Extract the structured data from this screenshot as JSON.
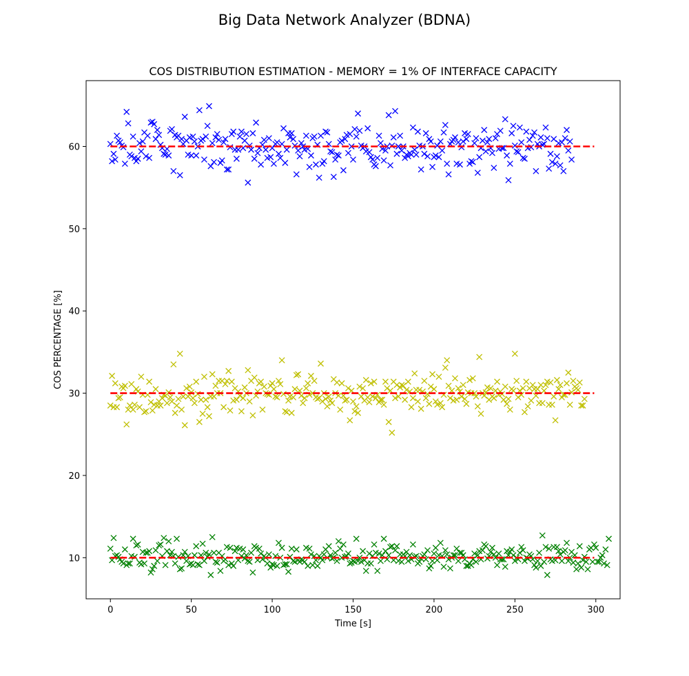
{
  "figure": {
    "suptitle": "Big Data Network Analyzer (BDNA)"
  },
  "chart_data": {
    "type": "scatter",
    "title": "COS DISTRIBUTION ESTIMATION - MEMORY = 1% OF INTERFACE CAPACITY",
    "xlabel": "Time [s]",
    "ylabel": "COS PERCENTAGE [%]",
    "xlim": [
      -15,
      315
    ],
    "ylim": [
      5,
      68
    ],
    "xticks": [
      0,
      50,
      100,
      150,
      200,
      250,
      300
    ],
    "yticks": [
      10,
      20,
      30,
      40,
      50,
      60
    ],
    "grid": false,
    "marker": "x",
    "x_step": 1,
    "x_count": 300,
    "series": [
      {
        "color": "#0000ff",
        "values": [
          60.3,
          58.2,
          59.1,
          58.4,
          61.3,
          60.7,
          60.5,
          60.1,
          59.9,
          57.9,
          64.2,
          62.8,
          59.0,
          58.8,
          61.2,
          58.6,
          58.2,
          58.5,
          60.4,
          59.4,
          60.6,
          61.7,
          58.8,
          61.3,
          58.6,
          62.9,
          63.0,
          62.7,
          60.9,
          62.0,
          61.4,
          60.2,
          59.8,
          59.1,
          59.0,
          59.7,
          58.9,
          61.9,
          62.1,
          57.0,
          61.4,
          61.1,
          61.3,
          56.5,
          60.9,
          60.3,
          63.6,
          60.7,
          59.0,
          61.1,
          58.9,
          61.2,
          60.6,
          58.9,
          60.0,
          64.4,
          60.7,
          60.9,
          58.4,
          61.2,
          62.5,
          64.9,
          57.6,
          60.4,
          58.1,
          61.1,
          61.5,
          60.8,
          58.0,
          58.3,
          60.5,
          60.9,
          57.2,
          57.2,
          59.9,
          61.5,
          61.8,
          59.6,
          58.5,
          59.6,
          61.2,
          61.8,
          59.8,
          60.7,
          61.5,
          55.6,
          60.1,
          59.6,
          61.6,
          58.5,
          62.9,
          59.2,
          59.8,
          57.8,
          60.2,
          60.8,
          59.6,
          58.6,
          61.0,
          58.7,
          59.8,
          57.9,
          60.3,
          60.5,
          59.1,
          58.6,
          60.3,
          62.2,
          58.0,
          59.6,
          61.6,
          61.1,
          61.6,
          60.9,
          60.1,
          56.6,
          59.5,
          58.8,
          60.4,
          60.0,
          59.6,
          61.3,
          59.7,
          57.5,
          58.9,
          61.0,
          61.2,
          57.8,
          60.2,
          56.2,
          61.3,
          57.9,
          58.2,
          61.8,
          61.7,
          60.3,
          59.4,
          59.3,
          56.3,
          58.4,
          59.0,
          58.9,
          60.5,
          60.7,
          57.1,
          60.9,
          61.4,
          59.2,
          61.5,
          60.0,
          58.4,
          62.1,
          61.2,
          64.0,
          61.9,
          60.1,
          59.8,
          60.0,
          59.4,
          62.2,
          59.3,
          58.7,
          58.4,
          57.8,
          57.6,
          58.6,
          61.3,
          60.4,
          59.7,
          58.3,
          59.5,
          60.0,
          63.8,
          57.7,
          60.1,
          61.1,
          64.3,
          59.1,
          60.0,
          61.3,
          59.5,
          60.0,
          58.6,
          59.0,
          58.8,
          59.2,
          59.0,
          62.3,
          59.6,
          59.0,
          61.8,
          60.1,
          57.2,
          60.0,
          59.1,
          61.6,
          58.8,
          60.9,
          60.6,
          57.5,
          58.7,
          58.9,
          60.1,
          58.7,
          60.6,
          59.5,
          61.7,
          62.6,
          57.9,
          56.6,
          60.3,
          60.6,
          60.8,
          61.1,
          57.9,
          60.5,
          57.8,
          59.9,
          60.6,
          61.6,
          60.9,
          61.5,
          57.9,
          58.2,
          58.1,
          60.4,
          61.0,
          56.8,
          58.7,
          59.8,
          60.7,
          62.0,
          59.4,
          60.5,
          60.9,
          59.8,
          59.2,
          57.4,
          61.0,
          61.5,
          59.7,
          61.9,
          59.8,
          59.8,
          63.3,
          58.9,
          55.9,
          57.9,
          61.6,
          62.5,
          60.1,
          59.4,
          59.3,
          62.3,
          60.5,
          58.6,
          58.5,
          61.8,
          59.8,
          60.8,
          59.9,
          61.3,
          61.7,
          57.0,
          60.3,
          60.0,
          61.1,
          60.2,
          60.3,
          62.3,
          61.0,
          57.3,
          59.1,
          58.1,
          60.9,
          57.9,
          58.8,
          60.4,
          57.7,
          60.5,
          57.0,
          61.0,
          62.0,
          59.5,
          60.6,
          58.4
        ]
      },
      {
        "color": "#bfbf00",
        "values": [
          28.5,
          32.1,
          28.3,
          31.2,
          28.3,
          29.4,
          29.5,
          30.8,
          30.6,
          30.9,
          26.2,
          28.0,
          28.5,
          31.1,
          28.0,
          28.6,
          30.5,
          30.2,
          28.3,
          32.0,
          29.8,
          27.7,
          27.8,
          29.8,
          31.4,
          28.9,
          27.9,
          28.6,
          30.5,
          28.5,
          29.0,
          28.5,
          29.4,
          29.8,
          29.7,
          28.8,
          30.1,
          29.5,
          29.0,
          33.5,
          27.6,
          28.5,
          29.3,
          34.8,
          28.0,
          29.6,
          26.1,
          30.6,
          29.6,
          30.8,
          30.1,
          29.4,
          28.8,
          31.4,
          29.9,
          26.5,
          29.2,
          27.5,
          32.0,
          29.2,
          28.3,
          27.2,
          29.6,
          32.3,
          29.6,
          30.9,
          30.0,
          31.5,
          30.0,
          31.5,
          28.3,
          31.1,
          31.5,
          32.7,
          27.9,
          31.4,
          29.1,
          30.6,
          29.2,
          30.2,
          29.7,
          27.8,
          29.4,
          30.7,
          30.0,
          32.8,
          29.0,
          31.5,
          27.3,
          31.9,
          29.7,
          30.2,
          31.2,
          31.4,
          28.0,
          30.8,
          30.0,
          29.9,
          29.8,
          30.9,
          31.2,
          30.5,
          29.6,
          29.5,
          31.5,
          31.1,
          34.0,
          29.9,
          27.8,
          27.7,
          29.1,
          29.6,
          27.6,
          29.5,
          30.5,
          32.2,
          32.3,
          30.3,
          29.7,
          28.8,
          29.4,
          30.6,
          31.2,
          29.8,
          32.1,
          30.0,
          31.5,
          29.5,
          29.3,
          29.4,
          33.6,
          29.0,
          30.0,
          29.3,
          28.4,
          29.6,
          29.1,
          28.8,
          31.7,
          30.0,
          31.3,
          29.7,
          28.0,
          31.2,
          29.7,
          29.1,
          29.2,
          30.6,
          26.7,
          30.3,
          29.0,
          27.8,
          28.4,
          27.6,
          30.8,
          29.6,
          30.6,
          29.1,
          31.6,
          29.5,
          28.9,
          31.2,
          29.6,
          31.4,
          29.4,
          29.8,
          28.9,
          29.2,
          29.2,
          28.6,
          31.4,
          30.6,
          26.5,
          30.3,
          25.2,
          31.4,
          29.4,
          31.0,
          29.6,
          30.7,
          31.0,
          30.9,
          29.2,
          30.4,
          31.4,
          30.2,
          28.3,
          29.4,
          32.4,
          30.4,
          29.0,
          30.4,
          28.1,
          30.2,
          31.5,
          29.4,
          29.9,
          28.7,
          30.8,
          32.3,
          30.5,
          29.0,
          28.6,
          32.0,
          28.8,
          28.3,
          29.8,
          33.1,
          34.0,
          30.9,
          29.4,
          30.3,
          29.1,
          31.8,
          29.2,
          30.6,
          30.2,
          29.6,
          31.0,
          29.3,
          28.7,
          30.1,
          31.6,
          30.0,
          31.8,
          30.0,
          29.6,
          28.4,
          34.4,
          27.5,
          30.0,
          29.7,
          30.1,
          30.7,
          29.2,
          30.6,
          29.6,
          29.4,
          30.3,
          31.4,
          29.8,
          30.2,
          29.9,
          29.2,
          30.8,
          28.7,
          29.3,
          28.0,
          30.5,
          30.3,
          34.8,
          31.5,
          29.5,
          30.3,
          29.8,
          30.6,
          27.7,
          31.4,
          28.4,
          30.6,
          29.1,
          31.0,
          30.5,
          29.7,
          30.5,
          28.8,
          31.0,
          28.8,
          30.3,
          31.0,
          31.4,
          28.6,
          31.3,
          28.6,
          29.6,
          26.7,
          31.6,
          30.5,
          31.0,
          29.5,
          29.8,
          29.8,
          31.2,
          32.5,
          28.6,
          30.1,
          31.5,
          30.8,
          30.6,
          30.4,
          31.3,
          28.5,
          28.5,
          29.3
        ]
      },
      {
        "color": "#008000",
        "values": [
          11.1,
          9.7,
          12.4,
          10.2,
          10.3,
          10.1,
          9.8,
          9.5,
          9.3,
          11.0,
          9.1,
          9.3,
          9.3,
          10.2,
          12.3,
          10.1,
          11.5,
          11.6,
          9.4,
          9.2,
          10.7,
          9.3,
          10.6,
          10.6,
          10.8,
          8.2,
          8.6,
          9.0,
          10.9,
          9.6,
          11.5,
          11.6,
          10.2,
          12.4,
          9.1,
          10.8,
          12.0,
          10.3,
          10.7,
          10.2,
          9.3,
          12.3,
          10.1,
          8.6,
          8.7,
          10.3,
          10.7,
          9.6,
          10.2,
          9.2,
          9.3,
          9.1,
          10.3,
          11.4,
          9.2,
          9.1,
          10.3,
          11.7,
          9.6,
          10.6,
          10.1,
          10.4,
          7.9,
          12.5,
          10.6,
          9.5,
          9.4,
          10.6,
          8.4,
          10.2,
          9.6,
          9.8,
          11.3,
          9.1,
          11.2,
          9.3,
          9.0,
          10.8,
          11.2,
          9.7,
          11.1,
          10.2,
          11.0,
          9.9,
          10.3,
          9.6,
          9.5,
          10.6,
          8.2,
          11.4,
          11.2,
          9.7,
          11.1,
          10.5,
          9.8,
          10.2,
          10.0,
          9.3,
          10.4,
          8.8,
          9.2,
          9.1,
          10.2,
          9.0,
          11.8,
          10.0,
          11.2,
          9.1,
          9.2,
          9.2,
          8.3,
          10.1,
          11.1,
          9.6,
          9.5,
          11.0,
          9.7,
          9.5,
          9.8,
          9.7,
          9.5,
          11.2,
          9.0,
          11.1,
          10.4,
          9.1,
          10.2,
          9.7,
          9.0,
          10.2,
          10.0,
          9.7,
          10.4,
          11.0,
          10.0,
          11.4,
          10.3,
          9.9,
          10.0,
          10.6,
          9.6,
          12.0,
          11.1,
          10.0,
          11.6,
          10.1,
          10.2,
          10.5,
          9.3,
          9.4,
          9.6,
          9.5,
          12.3,
          9.6,
          10.0,
          9.5,
          10.8,
          9.7,
          8.4,
          9.3,
          10.5,
          9.3,
          10.2,
          11.6,
          10.6,
          8.4,
          10.5,
          9.6,
          10.3,
          12.3,
          10.8,
          9.8,
          10.3,
          11.3,
          11.4,
          9.7,
          10.9,
          11.4,
          9.6,
          10.4,
          9.5,
          10.4,
          10.2,
          10.7,
          9.6,
          10.3,
          9.8,
          11.6,
          10.1,
          10.2,
          9.3,
          9.5,
          9.9,
          10.2,
          10.4,
          9.8,
          10.9,
          8.7,
          9.0,
          9.6,
          10.5,
          11.2,
          9.7,
          10.3,
          11.8,
          10.2,
          8.9,
          10.9,
          10.4,
          9.8,
          8.7,
          10.0,
          10.3,
          10.3,
          11.1,
          9.6,
          10.6,
          10.6,
          10.3,
          9.8,
          9.0,
          9.0,
          9.3,
          9.1,
          9.8,
          10.5,
          9.5,
          10.3,
          10.8,
          9.8,
          10.9,
          11.6,
          11.4,
          9.9,
          10.2,
          10.7,
          11.2,
          10.4,
          10.0,
          9.1,
          10.5,
          9.8,
          9.8,
          9.8,
          8.9,
          10.8,
          10.3,
          10.7,
          11.0,
          10.3,
          9.6,
          10.0,
          9.8,
          10.6,
          11.3,
          10.9,
          9.6,
          10.0,
          9.9,
          10.4,
          10.2,
          9.8,
          9.1,
          8.8,
          9.6,
          10.6,
          9.0,
          12.7,
          9.5,
          11.3,
          7.9,
          11.1,
          9.8,
          9.6,
          11.3,
          9.7,
          11.3,
          10.8,
          10.4,
          9.6,
          10.7,
          10.9,
          11.8,
          9.6,
          10.0,
          10.7,
          9.4,
          10.3,
          8.6,
          9.3,
          11.4,
          8.8,
          9.7,
          10.1,
          9.5,
          8.6,
          11.0,
          11.2,
          9.5,
          11.6,
          11.2,
          9.5,
          9.5,
          10.0,
          10.3,
          9.3,
          11.0,
          9.1,
          12.3
        ]
      }
    ],
    "reference_lines": [
      {
        "y": 60,
        "x_range": [
          0,
          299
        ],
        "color": "#ff0000",
        "style": "dashed"
      },
      {
        "y": 30,
        "x_range": [
          0,
          299
        ],
        "color": "#ff0000",
        "style": "dashed"
      },
      {
        "y": 10,
        "x_range": [
          0,
          299
        ],
        "color": "#ff0000",
        "style": "dashed"
      }
    ]
  }
}
